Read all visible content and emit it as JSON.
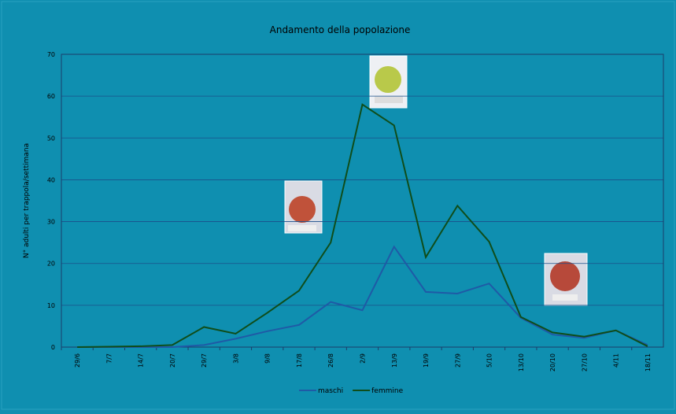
{
  "chart_data": {
    "type": "line",
    "title": "Andamento della popolazione",
    "y_label": "N° adulti per trappola/settimana",
    "categories": [
      "29/6",
      "7/7",
      "14/7",
      "20/7",
      "29/7",
      "3/8",
      "9/8",
      "17/8",
      "26/8",
      "2/9",
      "13/9",
      "19/9",
      "27/9",
      "5/10",
      "13/10",
      "20/10",
      "27/10",
      "4/11",
      "18/11"
    ],
    "series": [
      {
        "name": "maschi",
        "color": "#1f5aa6",
        "values": [
          0,
          0,
          0,
          0,
          0.5,
          2,
          3.8,
          5.3,
          10.8,
          8.8,
          24,
          13.2,
          12.8,
          15.2,
          7,
          3,
          2.2,
          4,
          0.5
        ]
      },
      {
        "name": "femmine",
        "color": "#0f4d1a",
        "values": [
          0,
          0.1,
          0.2,
          0.5,
          4.8,
          3.2,
          8.2,
          13.5,
          25,
          58,
          53,
          21.5,
          33.8,
          25.2,
          7.2,
          3.5,
          2.5,
          4,
          0.2
        ]
      }
    ],
    "ylim": [
      0,
      70
    ],
    "yticks": [
      0,
      10,
      20,
      30,
      40,
      50,
      60,
      70
    ],
    "grid": true,
    "legend": "bottom"
  }
}
